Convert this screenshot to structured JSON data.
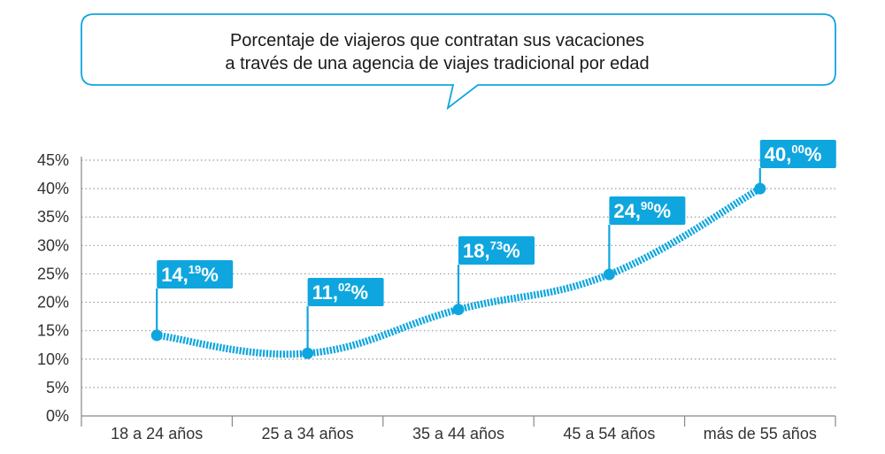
{
  "colors": {
    "accent": "#0fa6df",
    "grid": "#9a9a9a",
    "axis": "#888888",
    "text": "#333333"
  },
  "callout": {
    "line1": "Porcentaje de viajeros que contratan sus vacaciones",
    "line2": "a través de una agencia de viajes tradicional por edad"
  },
  "chart_data": {
    "type": "line",
    "title": "Porcentaje de viajeros que contratan sus vacaciones a través de una agencia de viajes tradicional por edad",
    "categories": [
      "18 a 24 años",
      "25 a 34 años",
      "35 a 44 años",
      "45 a 54 años",
      "más de 55 años"
    ],
    "values": [
      14.19,
      11.02,
      18.73,
      24.9,
      40.0
    ],
    "value_labels": [
      {
        "main": "14,",
        "dec": "19",
        "pct": "%"
      },
      {
        "main": "11,",
        "dec": "02",
        "pct": "%"
      },
      {
        "main": "18,",
        "dec": "73",
        "pct": "%"
      },
      {
        "main": "24,",
        "dec": "90",
        "pct": "%"
      },
      {
        "main": "40,",
        "dec": "00",
        "pct": "%"
      }
    ],
    "y_ticks": [
      "0%",
      "5%",
      "10%",
      "15%",
      "20%",
      "25%",
      "30%",
      "35%",
      "40%",
      "45%"
    ],
    "ylim": [
      0,
      45
    ],
    "grid": true,
    "legend": "none"
  }
}
